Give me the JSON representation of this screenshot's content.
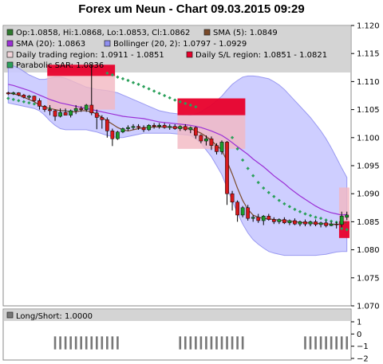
{
  "title": "Forex um Neun - Chart 09.03.2015 09:29",
  "colors": {
    "panel_bg": "#d4d4d4",
    "up": "#1b9b2b",
    "down": "#d7191c",
    "sma5": "#7a4a2a",
    "sma20": "#9b30d6",
    "bollinger_fill": "#c9c9ff",
    "bollinger_line": "#8f8ff0",
    "sar": "#2aa05a",
    "daily_region": "#f2b8c2",
    "sl_region": "#e8002b",
    "longshort": "#777777"
  },
  "chart_data": [
    {
      "type": "candlestick",
      "ylim": [
        1.07,
        1.12
      ],
      "yticks": [
        "1.070",
        "1.075",
        "1.080",
        "1.085",
        "1.090",
        "1.095",
        "1.100",
        "1.105",
        "1.110",
        "1.115",
        "1.120"
      ],
      "legend": [
        {
          "label": "Op:1.0858, Hi:1.0868, Lo:1.0853, Cl:1.0862",
          "color": "#2d7a2d"
        },
        {
          "label": "SMA (5): 1.0849",
          "color": "#7a4a2a"
        },
        {
          "label": "SMA (20): 1.0863",
          "color": "#9b30d6"
        },
        {
          "label": "Bollinger (20, 2): 1.0797 - 1.0929",
          "color": "#8f8ff0"
        },
        {
          "label": "Daily trading region: 1.0911 - 1.0851",
          "color": "#f2d5da"
        },
        {
          "label": "Daily S/L region: 1.0851 - 1.0821",
          "color": "#e8002b"
        },
        {
          "label": "Parabolic SAR: 1.0836",
          "color": "#2aa05a"
        }
      ],
      "candles": [
        [
          1.108,
          1.1082,
          1.1076,
          1.1078
        ],
        [
          1.1078,
          1.1082,
          1.1076,
          1.108
        ],
        [
          1.108,
          1.1081,
          1.1074,
          1.1076
        ],
        [
          1.1076,
          1.1078,
          1.107,
          1.1072
        ],
        [
          1.1072,
          1.1076,
          1.1068,
          1.1074
        ],
        [
          1.1074,
          1.1075,
          1.1064,
          1.1066
        ],
        [
          1.1066,
          1.107,
          1.105,
          1.1056
        ],
        [
          1.1056,
          1.1058,
          1.1046,
          1.105
        ],
        [
          1.105,
          1.1058,
          1.104,
          1.1048
        ],
        [
          1.1048,
          1.105,
          1.103,
          1.1038
        ],
        [
          1.1038,
          1.1052,
          1.1036,
          1.1045
        ],
        [
          1.1045,
          1.1052,
          1.104,
          1.104
        ],
        [
          1.104,
          1.105,
          1.1036,
          1.1048
        ],
        [
          1.1048,
          1.1058,
          1.1042,
          1.1052
        ],
        [
          1.1052,
          1.1056,
          1.1046,
          1.105
        ],
        [
          1.105,
          1.106,
          1.1046,
          1.1058
        ],
        [
          1.1058,
          1.113,
          1.104,
          1.1044
        ],
        [
          1.1044,
          1.105,
          1.1015,
          1.1036
        ],
        [
          1.1036,
          1.104,
          1.1016,
          1.1032
        ],
        [
          1.1032,
          1.1036,
          1.1,
          1.1012
        ],
        [
          1.1012,
          1.1016,
          1.0985,
          1.0998
        ],
        [
          1.0998,
          1.1012,
          1.0996,
          1.101
        ],
        [
          1.101,
          1.1018,
          1.1008,
          1.1016
        ],
        [
          1.1016,
          1.1022,
          1.1012,
          1.1018
        ],
        [
          1.1018,
          1.1024,
          1.1014,
          1.102
        ],
        [
          1.102,
          1.1024,
          1.1014,
          1.1018
        ],
        [
          1.1018,
          1.1022,
          1.101,
          1.1014
        ],
        [
          1.1014,
          1.1024,
          1.1012,
          1.1022
        ],
        [
          1.1022,
          1.1026,
          1.1016,
          1.102
        ],
        [
          1.102,
          1.1026,
          1.1016,
          1.1022
        ],
        [
          1.1022,
          1.1026,
          1.1016,
          1.1018
        ],
        [
          1.1018,
          1.1024,
          1.1014,
          1.102
        ],
        [
          1.102,
          1.1024,
          1.1014,
          1.1016
        ],
        [
          1.1016,
          1.1022,
          1.1012,
          1.102
        ],
        [
          1.102,
          1.1024,
          1.1012,
          1.1014
        ],
        [
          1.1014,
          1.102,
          1.1008,
          1.1018
        ],
        [
          1.1018,
          1.102,
          1.0998,
          1.1004
        ],
        [
          1.1004,
          1.1006,
          1.099,
          1.0994
        ],
        [
          1.0994,
          1.1004,
          1.0986,
          1.0998
        ],
        [
          1.0998,
          1.1002,
          1.0978,
          1.0986
        ],
        [
          1.0986,
          1.099,
          1.097,
          1.0975
        ],
        [
          1.0975,
          1.0995,
          1.097,
          1.0992
        ],
        [
          1.0992,
          1.0994,
          1.088,
          1.09
        ],
        [
          1.09,
          1.0905,
          1.087,
          1.0885
        ],
        [
          1.0885,
          1.0888,
          1.085,
          1.0862
        ],
        [
          1.0862,
          1.0878,
          1.0858,
          1.0875
        ],
        [
          1.0875,
          1.088,
          1.0852,
          1.0856
        ],
        [
          1.0856,
          1.0862,
          1.085,
          1.0858
        ],
        [
          1.0858,
          1.0864,
          1.0848,
          1.0852
        ],
        [
          1.0852,
          1.0862,
          1.0844,
          1.086
        ],
        [
          1.086,
          1.0864,
          1.0852,
          1.0854
        ],
        [
          1.0854,
          1.0858,
          1.0846,
          1.085
        ],
        [
          1.085,
          1.0856,
          1.0846,
          1.0854
        ],
        [
          1.0854,
          1.0858,
          1.0846,
          1.0848
        ],
        [
          1.0848,
          1.0854,
          1.0844,
          1.0852
        ],
        [
          1.0852,
          1.0856,
          1.0844,
          1.0846
        ],
        [
          1.0846,
          1.0852,
          1.0842,
          1.085
        ],
        [
          1.085,
          1.0854,
          1.0842,
          1.0846
        ],
        [
          1.0846,
          1.0852,
          1.0842,
          1.085
        ],
        [
          1.085,
          1.0854,
          1.0842,
          1.0845
        ],
        [
          1.0845,
          1.085,
          1.084,
          1.0848
        ],
        [
          1.0848,
          1.0852,
          1.084,
          1.0843
        ],
        [
          1.0843,
          1.085,
          1.0842,
          1.0846
        ],
        [
          1.0846,
          1.085,
          1.0838,
          1.0845
        ],
        [
          1.0845,
          1.0868,
          1.084,
          1.086
        ],
        [
          1.0858,
          1.0868,
          1.0853,
          1.0862
        ]
      ],
      "sma5": [
        1.108,
        1.1078,
        1.1076,
        1.1072,
        1.1068,
        1.1064,
        1.1058,
        1.1054,
        1.1052,
        1.105,
        1.1048,
        1.1048,
        1.1046,
        1.1046,
        1.1048,
        1.1048,
        1.1046,
        1.1042,
        1.1036,
        1.103,
        1.1024,
        1.1018,
        1.1014,
        1.1012,
        1.1014,
        1.1016,
        1.1018,
        1.1018,
        1.1019,
        1.1019,
        1.1019,
        1.1019,
        1.1018,
        1.1018,
        1.1017,
        1.1016,
        1.1012,
        1.1008,
        1.1002,
        1.0995,
        1.0986,
        1.0978,
        1.0958,
        1.0935,
        1.091,
        1.0888,
        1.0872,
        1.0862,
        1.0858,
        1.0856,
        1.0855,
        1.0854,
        1.0853,
        1.0852,
        1.0851,
        1.085,
        1.0849,
        1.0848,
        1.0848,
        1.0847,
        1.0847,
        1.0846,
        1.0846,
        1.0845,
        1.0846,
        1.0849
      ],
      "sma20": [
        1.1095,
        1.1093,
        1.109,
        1.1087,
        1.1084,
        1.108,
        1.1076,
        1.1072,
        1.1068,
        1.1065,
        1.1062,
        1.106,
        1.1058,
        1.1056,
        1.1054,
        1.1052,
        1.105,
        1.1048,
        1.1046,
        1.1044,
        1.1042,
        1.104,
        1.1038,
        1.1037,
        1.1036,
        1.1035,
        1.1034,
        1.1032,
        1.103,
        1.1028,
        1.1027,
        1.1026,
        1.1025,
        1.1024,
        1.1023,
        1.1022,
        1.102,
        1.1018,
        1.1015,
        1.1012,
        1.1008,
        1.1004,
        1.0998,
        1.0991,
        1.0984,
        1.0977,
        1.097,
        1.0962,
        1.0955,
        1.0948,
        1.094,
        1.0932,
        1.0925,
        1.0918,
        1.091,
        1.0903,
        1.0896,
        1.089,
        1.0884,
        1.0878,
        1.0873,
        1.0869,
        1.0866,
        1.0864,
        1.0862,
        1.0863
      ],
      "bollinger_upper": [
        1.113,
        1.1128,
        1.1124,
        1.1118,
        1.1112,
        1.1108,
        1.1104,
        1.1104,
        1.1106,
        1.1108,
        1.1108,
        1.1106,
        1.1102,
        1.1098,
        1.1094,
        1.109,
        1.1088,
        1.1086,
        1.1085,
        1.1084,
        1.1082,
        1.108,
        1.1076,
        1.1072,
        1.1068,
        1.1064,
        1.106,
        1.1056,
        1.1052,
        1.1048,
        1.1046,
        1.1044,
        1.1043,
        1.1042,
        1.1041,
        1.104,
        1.1042,
        1.1046,
        1.1052,
        1.1058,
        1.1066,
        1.1074,
        1.1085,
        1.1095,
        1.1102,
        1.1108,
        1.111,
        1.111,
        1.1109,
        1.1107,
        1.1105,
        1.11,
        1.1094,
        1.1086,
        1.1076,
        1.1066,
        1.1056,
        1.1046,
        1.1036,
        1.1024,
        1.1012,
        1.0998,
        1.0982,
        1.0964,
        1.0946,
        1.0929
      ],
      "bollinger_lower": [
        1.1062,
        1.106,
        1.1058,
        1.1056,
        1.1054,
        1.1052,
        1.1048,
        1.104,
        1.103,
        1.1022,
        1.1016,
        1.1014,
        1.1014,
        1.1014,
        1.1014,
        1.1014,
        1.1012,
        1.101,
        1.1007,
        1.1004,
        1.1002,
        1.1,
        1.1,
        1.1002,
        1.1004,
        1.1006,
        1.1008,
        1.1008,
        1.1008,
        1.1008,
        1.1008,
        1.1008,
        1.1007,
        1.1006,
        1.1005,
        1.1004,
        1.0998,
        1.099,
        1.0978,
        1.0966,
        1.095,
        1.0934,
        1.0911,
        1.0887,
        1.0866,
        1.0846,
        1.083,
        1.0818,
        1.081,
        1.0803,
        1.0797,
        1.0794,
        1.0792,
        1.079,
        1.079,
        1.079,
        1.079,
        1.079,
        1.079,
        1.079,
        1.0791,
        1.0792,
        1.0794,
        1.0796,
        1.0797,
        1.0797
      ],
      "parabolic_sar": [
        [
          0,
          1.107
        ],
        [
          1,
          1.1068
        ],
        [
          2,
          1.1066
        ],
        [
          3,
          1.1064
        ],
        [
          4,
          1.1062
        ],
        [
          5,
          1.106
        ],
        [
          6,
          1.1058
        ],
        [
          7,
          1.1055
        ],
        [
          8,
          1.1052
        ],
        [
          19,
          1.1115
        ],
        [
          20,
          1.1112
        ],
        [
          21,
          1.1108
        ],
        [
          22,
          1.1105
        ],
        [
          23,
          1.1102
        ],
        [
          24,
          1.1098
        ],
        [
          25,
          1.1095
        ],
        [
          26,
          1.1091
        ],
        [
          27,
          1.1087
        ],
        [
          28,
          1.1083
        ],
        [
          29,
          1.1079
        ],
        [
          30,
          1.1075
        ],
        [
          31,
          1.1071
        ],
        [
          32,
          1.1067
        ],
        [
          33,
          1.1064
        ],
        [
          34,
          1.1061
        ],
        [
          35,
          1.1058
        ],
        [
          36,
          1.1055
        ],
        [
          43,
          1.1
        ],
        [
          44,
          1.098
        ],
        [
          45,
          1.096
        ],
        [
          46,
          1.0945
        ],
        [
          47,
          1.0932
        ],
        [
          48,
          1.092
        ],
        [
          49,
          1.091
        ],
        [
          50,
          1.0902
        ],
        [
          51,
          1.0895
        ],
        [
          52,
          1.0888
        ],
        [
          53,
          1.0882
        ],
        [
          54,
          1.0877
        ],
        [
          55,
          1.0872
        ],
        [
          56,
          1.0868
        ],
        [
          57,
          1.0864
        ],
        [
          58,
          1.0861
        ],
        [
          59,
          1.0858
        ],
        [
          60,
          1.0856
        ],
        [
          61,
          1.0853
        ],
        [
          62,
          1.0851
        ],
        [
          63,
          1.0849
        ],
        [
          64,
          1.0838
        ],
        [
          65,
          1.0836
        ]
      ],
      "regions": [
        {
          "type": "daily",
          "start": 8,
          "end": 20,
          "top": 1.111,
          "bottom": 1.105
        },
        {
          "type": "sl",
          "start": 8,
          "end": 20,
          "top": 1.113,
          "bottom": 1.111
        },
        {
          "type": "daily",
          "start": 33,
          "end": 45,
          "top": 1.104,
          "bottom": 1.098
        },
        {
          "type": "sl",
          "start": 33,
          "end": 45,
          "top": 1.107,
          "bottom": 1.104
        },
        {
          "type": "daily",
          "start": 64,
          "end": 65,
          "top": 1.0911,
          "bottom": 1.0851
        },
        {
          "type": "sl",
          "start": 64,
          "end": 65,
          "top": 1.0851,
          "bottom": 1.0821
        }
      ]
    },
    {
      "type": "bar",
      "legend": [
        {
          "label": "Long/Short: 1.0000",
          "color": "#777777"
        }
      ],
      "ylim": [
        -2,
        1
      ],
      "yticks": [
        "1",
        "0",
        "−1",
        "−2"
      ],
      "groups": [
        {
          "start": 9,
          "end": 21
        },
        {
          "start": 33,
          "end": 45
        },
        {
          "start": 57,
          "end": 65
        }
      ]
    }
  ]
}
